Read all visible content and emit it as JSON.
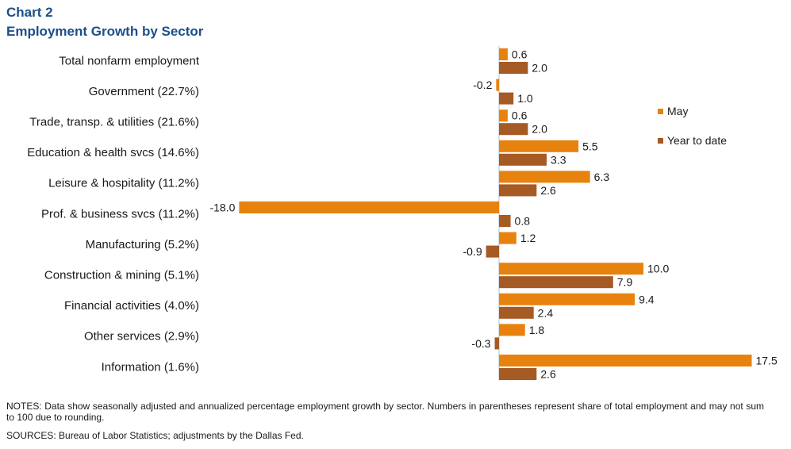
{
  "title_line1": "Chart 2",
  "title_line2": "Employment Growth by Sector",
  "notes": "NOTES: Data show seasonally adjusted and annualized percentage employment growth by sector. Numbers in parentheses represent share of total employment and may not sum to 100 due to rounding.",
  "sources": "SOURCES: Bureau of Labor Statistics; adjustments by the Dallas Fed.",
  "colors": {
    "may": "#e8820e",
    "ytd": "#a65a24",
    "axis": "#bfbfbf"
  },
  "chart_data": {
    "type": "bar",
    "orientation": "horizontal",
    "title": "Employment Growth by Sector",
    "categories": [
      "Total nonfarm employment",
      "Government (22.7%)",
      "Trade, transp. & utilities (21.6%)",
      "Education & health svcs (14.6%)",
      "Leisure & hospitality (11.2%)",
      "Prof. & business svcs (11.2%)",
      "Manufacturing (5.2%)",
      "Construction & mining (5.1%)",
      "Financial activities (4.0%)",
      "Other services (2.9%)",
      "Information (1.6%)"
    ],
    "series": [
      {
        "name": "May",
        "values": [
          0.6,
          -0.2,
          0.6,
          5.5,
          6.3,
          -18.0,
          1.2,
          10.0,
          9.4,
          1.8,
          17.5
        ]
      },
      {
        "name": "Year to date",
        "values": [
          2.0,
          1.0,
          2.0,
          3.3,
          2.6,
          0.8,
          -0.9,
          7.9,
          2.4,
          -0.3,
          2.6
        ]
      }
    ],
    "xlim": [
      -18.0,
      17.5
    ],
    "legend_position": "right",
    "grid": false
  }
}
